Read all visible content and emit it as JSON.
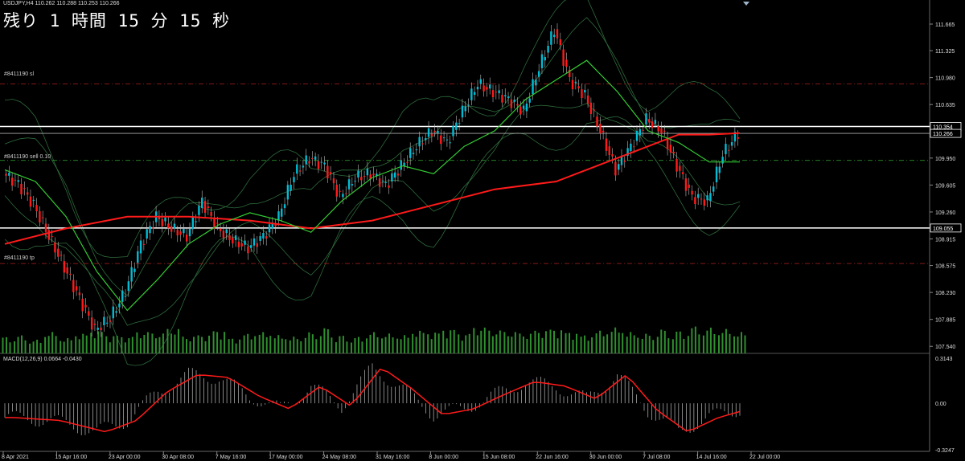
{
  "countdown": "残り 1 時間 15 分 15 秒",
  "symbol_header": "USDJPY,H4  110.262 110.288 110.253 110.266",
  "order_labels": {
    "sl": "#8411190 sl",
    "sell": "#8411190 sell 0.10",
    "tp": "#8411190 tp"
  },
  "macd_title": "MACD(12,26,9) 0.0664 -0.0430",
  "colors": {
    "background": "#000000",
    "bull_candle": "#00bcd4",
    "bear_candle": "#ff1a1a",
    "ma_long": "#ff1a1a",
    "ma_short": "#33cc33",
    "bands": "#2e6b3c",
    "volume": "#2f8f2f",
    "price_box": "#ffffff",
    "macd_hist": "#bdbdbd",
    "macd_signal": "#ff1a1a"
  },
  "chart_data": [
    {
      "type": "candlestick",
      "symbol": "USDJPY",
      "timeframe": "H4",
      "ohlc_last": {
        "open": 110.262,
        "high": 110.288,
        "low": 110.253,
        "close": 110.266
      },
      "y_ticks": [
        "111.665",
        "111.325",
        "110.980",
        "110.635",
        "110.354",
        "110.266",
        "109.950",
        "109.605",
        "109.260",
        "109.055",
        "108.915",
        "108.575",
        "108.230",
        "107.885",
        "107.540"
      ],
      "ylim": [
        107.45,
        111.85
      ],
      "x_ticks": [
        "8 Apr 2021",
        "15 Apr 16:00",
        "23 Apr 00:00",
        "30 Apr 08:00",
        "7 May 16:00",
        "17 May 00:00",
        "24 May 08:00",
        "31 May 16:00",
        "8 Jun 00:00",
        "15 Jun 08:00",
        "22 Jun 16:00",
        "30 Jun 00:00",
        "7 Jul 08:00",
        "14 Jul 16:00",
        "22 Jul 00:00"
      ],
      "price_path": [
        [
          0,
          109.75
        ],
        [
          1,
          109.62
        ],
        [
          2,
          109.35
        ],
        [
          3,
          108.95
        ],
        [
          4,
          108.55
        ],
        [
          5,
          108.15
        ],
        [
          6,
          107.75
        ],
        [
          7,
          107.9
        ],
        [
          8,
          108.25
        ],
        [
          9,
          108.85
        ],
        [
          10,
          109.2
        ],
        [
          11,
          109.05
        ],
        [
          12,
          108.95
        ],
        [
          13,
          109.4
        ],
        [
          14,
          109.05
        ],
        [
          15,
          108.9
        ],
        [
          16,
          108.8
        ],
        [
          17,
          108.95
        ],
        [
          18,
          109.2
        ],
        [
          19,
          109.75
        ],
        [
          20,
          109.95
        ],
        [
          21,
          109.85
        ],
        [
          22,
          109.45
        ],
        [
          23,
          109.7
        ],
        [
          24,
          109.75
        ],
        [
          25,
          109.6
        ],
        [
          26,
          109.85
        ],
        [
          27,
          110.1
        ],
        [
          28,
          110.3
        ],
        [
          29,
          110.15
        ],
        [
          30,
          110.55
        ],
        [
          31,
          110.9
        ],
        [
          32,
          110.8
        ],
        [
          33,
          110.7
        ],
        [
          34,
          110.55
        ],
        [
          35,
          111.1
        ],
        [
          36,
          111.6
        ],
        [
          37,
          110.95
        ],
        [
          38,
          110.75
        ],
        [
          39,
          110.3
        ],
        [
          40,
          109.8
        ],
        [
          41,
          110.1
        ],
        [
          42,
          110.45
        ],
        [
          43,
          110.3
        ],
        [
          44,
          109.85
        ],
        [
          45,
          109.45
        ],
        [
          46,
          109.4
        ],
        [
          47,
          110.0
        ],
        [
          48,
          110.27
        ]
      ],
      "moving_averages": [
        {
          "name": "long MA",
          "color": "#ff1a1a",
          "values": [
            [
              0,
              108.85
            ],
            [
              4,
              109.05
            ],
            [
              8,
              109.2
            ],
            [
              12,
              109.2
            ],
            [
              16,
              109.15
            ],
            [
              20,
              109.05
            ],
            [
              24,
              109.15
            ],
            [
              28,
              109.35
            ],
            [
              32,
              109.55
            ],
            [
              36,
              109.65
            ],
            [
              40,
              109.95
            ],
            [
              44,
              110.25
            ],
            [
              46,
              110.25
            ],
            [
              48,
              110.27
            ]
          ]
        },
        {
          "name": "short MA",
          "color": "#33cc33",
          "values": [
            [
              0,
              109.8
            ],
            [
              2,
              109.65
            ],
            [
              4,
              109.2
            ],
            [
              6,
              108.5
            ],
            [
              8,
              108.0
            ],
            [
              10,
              108.4
            ],
            [
              12,
              108.85
            ],
            [
              14,
              109.1
            ],
            [
              16,
              109.25
            ],
            [
              18,
              109.15
            ],
            [
              20,
              109.0
            ],
            [
              22,
              109.4
            ],
            [
              24,
              109.7
            ],
            [
              26,
              109.85
            ],
            [
              28,
              109.75
            ],
            [
              30,
              110.1
            ],
            [
              32,
              110.3
            ],
            [
              34,
              110.7
            ],
            [
              36,
              110.95
            ],
            [
              38,
              111.2
            ],
            [
              40,
              110.8
            ],
            [
              42,
              110.3
            ],
            [
              44,
              110.15
            ],
            [
              46,
              109.9
            ],
            [
              48,
              109.9
            ]
          ]
        }
      ],
      "horizontal_levels": [
        {
          "label": "#8411190 sl",
          "value": 110.9,
          "style": "dash-dot",
          "color": "#b02020"
        },
        {
          "label": "#8411190 sell 0.10",
          "value": 109.92,
          "style": "dash-dot",
          "color": "#33aa33"
        },
        {
          "label": "#8411190 tp",
          "value": 108.6,
          "style": "dash-dot",
          "color": "#b02020"
        },
        {
          "label": "110.354",
          "value": 110.354,
          "style": "solid",
          "color": "#ffffff"
        },
        {
          "label": "109.055",
          "value": 109.055,
          "style": "solid",
          "color": "#ffffff"
        },
        {
          "label": "110.266",
          "value": 110.266,
          "style": "solid",
          "color": "#aaaaaa"
        }
      ]
    },
    {
      "type": "bar",
      "name": "MACD",
      "title": "MACD(12,26,9) 0.0664 -0.0430",
      "macd": 0.0664,
      "signal": -0.043,
      "y_ticks": [
        "0.3143",
        "0.00",
        "-0.3247"
      ],
      "ylim": [
        -0.3247,
        0.3143
      ],
      "signal_path": [
        [
          0,
          -0.1
        ],
        [
          3,
          -0.12
        ],
        [
          6,
          -0.2
        ],
        [
          8,
          -0.12
        ],
        [
          10,
          0.08
        ],
        [
          12,
          0.2
        ],
        [
          14,
          0.18
        ],
        [
          16,
          0.05
        ],
        [
          18,
          -0.04
        ],
        [
          20,
          0.12
        ],
        [
          22,
          -0.02
        ],
        [
          24,
          0.25
        ],
        [
          26,
          0.1
        ],
        [
          28,
          -0.08
        ],
        [
          30,
          -0.04
        ],
        [
          32,
          0.06
        ],
        [
          34,
          0.15
        ],
        [
          36,
          0.12
        ],
        [
          38,
          0.03
        ],
        [
          40,
          0.2
        ],
        [
          42,
          -0.05
        ],
        [
          44,
          -0.2
        ],
        [
          46,
          -0.1
        ],
        [
          48,
          -0.04
        ]
      ]
    },
    {
      "type": "bar",
      "name": "Volume",
      "values": [
        0.55,
        0.6,
        0.45,
        0.7,
        0.5,
        0.65,
        0.75,
        0.6,
        0.55,
        0.7,
        0.65,
        0.8,
        0.55,
        0.6,
        0.75,
        0.5,
        0.65,
        0.7,
        0.6,
        0.55,
        0.7,
        0.85,
        0.6,
        0.55,
        0.7,
        0.65,
        0.6,
        0.75,
        0.7,
        0.8,
        0.65,
        0.85,
        0.75,
        0.7,
        0.65,
        0.75,
        0.8,
        0.7,
        0.6,
        0.75,
        0.85,
        0.7,
        0.65,
        0.8,
        0.75,
        0.9,
        0.85,
        0.8,
        0.7
      ]
    }
  ]
}
